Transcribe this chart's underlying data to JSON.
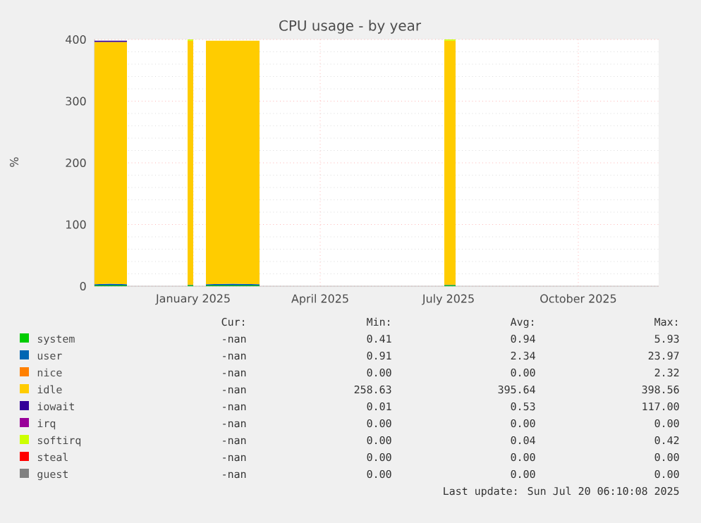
{
  "chart_data": {
    "type": "area",
    "title": "CPU usage - by year",
    "ylabel": "%",
    "stacked": true,
    "grid": true,
    "legend": "bottom",
    "x": [
      "2024-10-23",
      "2024-11-03",
      "2024-11-15",
      "2024-11-16",
      "2024-12-28",
      "2025-01-01",
      "2025-01-02",
      "2025-01-10",
      "2025-01-29",
      "2025-02-17",
      "2025-02-18",
      "2025-06-28",
      "2025-07-06"
    ],
    "xlim": [
      "2024-10-23",
      "2025-11-27"
    ],
    "xticks": [
      {
        "value": "2025-01-01",
        "label": "January 2025"
      },
      {
        "value": "2025-04-01",
        "label": "April 2025"
      },
      {
        "value": "2025-07-01",
        "label": "July 2025"
      },
      {
        "value": "2025-10-01",
        "label": "October 2025"
      }
    ],
    "ylim": [
      0,
      400
    ],
    "yticks": [
      0,
      100,
      200,
      300,
      400
    ],
    "series": [
      {
        "name": "system",
        "color": "#00cc00",
        "values": [
          1,
          1,
          1,
          null,
          1,
          1,
          null,
          1,
          1,
          1,
          null,
          1,
          1
        ]
      },
      {
        "name": "user",
        "color": "#0066b3",
        "values": [
          2,
          3,
          2,
          null,
          1,
          1,
          null,
          2,
          3,
          2,
          null,
          1,
          1
        ]
      },
      {
        "name": "nice",
        "color": "#ff8000",
        "values": [
          null,
          null,
          null,
          null,
          null,
          null,
          null,
          null,
          null,
          null,
          null,
          null,
          null
        ]
      },
      {
        "name": "idle",
        "color": "#ffcc00",
        "values": [
          393,
          392,
          393,
          null,
          396,
          396,
          null,
          395,
          394,
          395,
          null,
          396,
          396
        ]
      },
      {
        "name": "iowait",
        "color": "#330099",
        "values": [
          2,
          2,
          2,
          null,
          null,
          null,
          null,
          null,
          null,
          null,
          null,
          null,
          null
        ]
      },
      {
        "name": "irq",
        "color": "#990099",
        "values": [
          null,
          null,
          null,
          null,
          null,
          null,
          null,
          null,
          null,
          null,
          null,
          null,
          null
        ]
      },
      {
        "name": "softirq",
        "color": "#ccff00",
        "values": [
          null,
          null,
          null,
          null,
          2,
          2,
          null,
          null,
          null,
          null,
          null,
          2,
          2
        ]
      },
      {
        "name": "steal",
        "color": "#ff0000",
        "values": [
          null,
          null,
          null,
          null,
          null,
          null,
          null,
          null,
          null,
          null,
          null,
          null,
          null
        ]
      },
      {
        "name": "guest",
        "color": "#808080",
        "values": [
          null,
          null,
          null,
          null,
          null,
          null,
          null,
          null,
          null,
          null,
          null,
          null,
          null
        ]
      }
    ],
    "annotations": [
      "Cur:",
      "Min:",
      "Avg:",
      "Max:",
      "-nan",
      "0.41",
      "0.94",
      "5.93",
      "-nan",
      "0.91",
      "2.34",
      "23.97",
      "-nan",
      "0.00",
      "0.00",
      "2.32",
      "-nan",
      "258.63",
      "395.64",
      "398.56",
      "-nan",
      "0.01",
      "0.53",
      "117.00",
      "-nan",
      "0.00",
      "0.00",
      "0.00",
      "-nan",
      "0.00",
      "0.04",
      "0.42",
      "-nan",
      "0.00",
      "0.00",
      "0.00",
      "-nan",
      "0.00",
      "0.00",
      "0.00",
      "Last update: Sun Jul 20 06:10:08 2025"
    ]
  }
}
